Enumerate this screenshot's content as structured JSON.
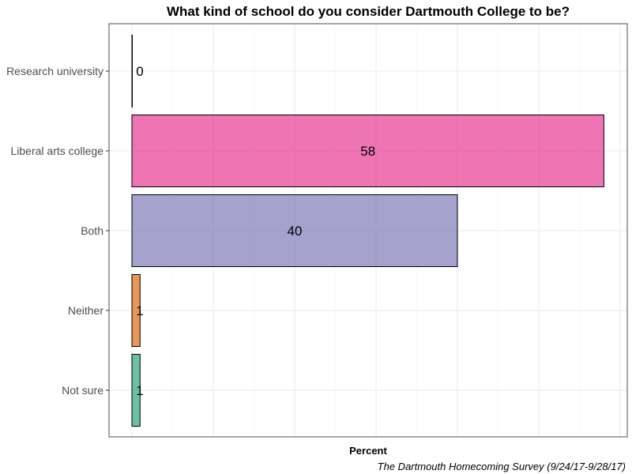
{
  "chart_data": {
    "type": "bar",
    "orientation": "horizontal",
    "title": "What kind of school do you consider Dartmouth College to be?",
    "xlabel": "Percent",
    "ylabel": "",
    "caption": "The Dartmouth Homecoming Survey (9/24/17-9/28/17)",
    "categories": [
      "Research university",
      "Liberal arts college",
      "Both",
      "Neither",
      "Not sure"
    ],
    "values": [
      0,
      58,
      40,
      1,
      1
    ],
    "data_labels": [
      "0",
      "58",
      "40",
      "1",
      "1"
    ],
    "colors": [
      "#e7298a",
      "#e7298a",
      "#7570b3",
      "#d95f02",
      "#1b9e77"
    ],
    "xlim": [
      0,
      60
    ],
    "grid": true,
    "legend": "none"
  }
}
